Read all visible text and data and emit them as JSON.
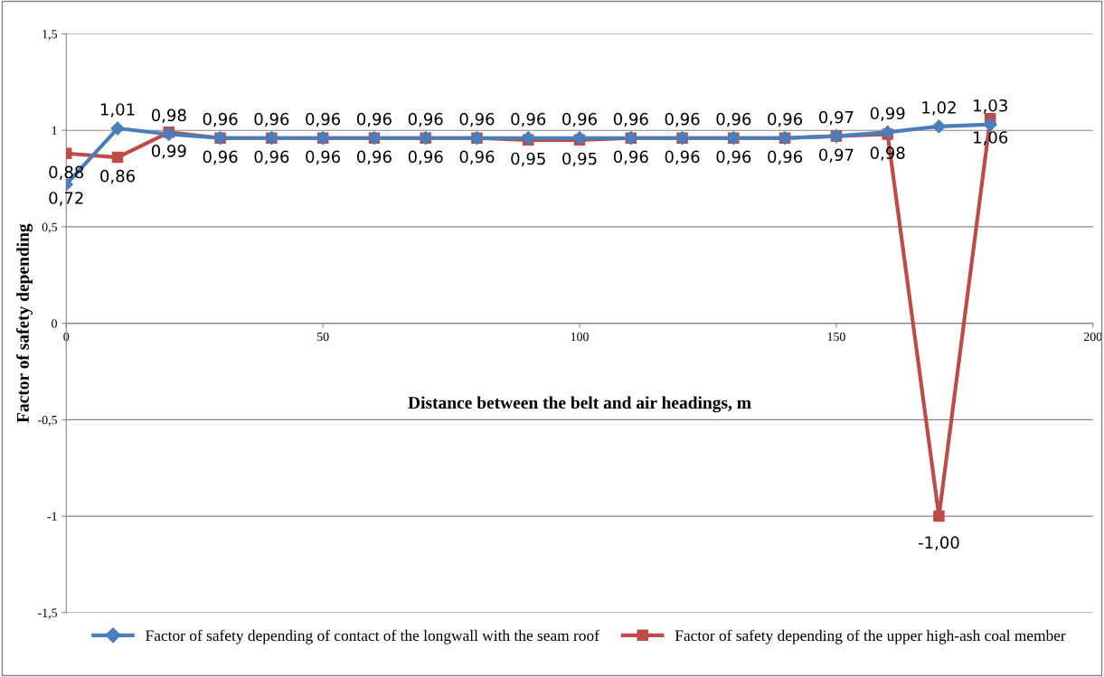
{
  "chart_data": {
    "type": "line",
    "xlabel": "Distance between the belt and air headings, m",
    "ylabel": "Factor of safety depending",
    "x": [
      0,
      10,
      20,
      30,
      40,
      50,
      60,
      70,
      80,
      90,
      100,
      110,
      120,
      130,
      140,
      150,
      160,
      170,
      180
    ],
    "series": [
      {
        "name": "Factor of safety depending of contact of the longwall with the seam roof",
        "color": "#4a7ebb",
        "marker": "diamond",
        "values": [
          0.72,
          1.01,
          0.98,
          0.96,
          0.96,
          0.96,
          0.96,
          0.96,
          0.96,
          0.96,
          0.96,
          0.96,
          0.96,
          0.96,
          0.96,
          0.97,
          0.99,
          1.02,
          1.03
        ],
        "value_labels": [
          "0,72",
          "1,01",
          "0,98",
          "0,96",
          "0,96",
          "0,96",
          "0,96",
          "0,96",
          "0,96",
          "0,96",
          "0,96",
          "0,96",
          "0,96",
          "0,96",
          "0,96",
          "0,97",
          "0,99",
          "1,02",
          "1,03"
        ]
      },
      {
        "name": "Factor of safety depending of the upper high-ash coal member",
        "color": "#be4b48",
        "marker": "square",
        "values": [
          0.88,
          0.86,
          0.99,
          0.96,
          0.96,
          0.96,
          0.96,
          0.96,
          0.96,
          0.95,
          0.95,
          0.96,
          0.96,
          0.96,
          0.96,
          0.97,
          0.98,
          -1.0,
          1.06
        ],
        "value_labels": [
          "0,88",
          "0,86",
          "0,99",
          "0,96",
          "0,96",
          "0,96",
          "0,96",
          "0,96",
          "0,96",
          "0,95",
          "0,95",
          "0,96",
          "0,96",
          "0,96",
          "0,96",
          "0,97",
          "0,98",
          "-1,00",
          "1,06"
        ]
      }
    ],
    "xlim": [
      0,
      200
    ],
    "xticks": [
      0,
      50,
      100,
      150,
      200
    ],
    "ylim": [
      -1.5,
      1.5
    ],
    "yticks": [
      {
        "value": -1.5,
        "label": "-1,5"
      },
      -1,
      {
        "value": -0.5,
        "label": "-0,5"
      },
      0,
      {
        "value": 0.5,
        "label": "0,5"
      },
      1,
      {
        "value": 1.5,
        "label": "1,5"
      }
    ],
    "grid": "y",
    "legend": "bottom"
  }
}
